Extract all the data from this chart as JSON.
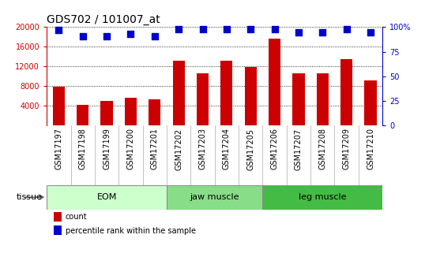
{
  "title": "GDS702 / 101007_at",
  "samples": [
    "GSM17197",
    "GSM17198",
    "GSM17199",
    "GSM17200",
    "GSM17201",
    "GSM17202",
    "GSM17203",
    "GSM17204",
    "GSM17205",
    "GSM17206",
    "GSM17207",
    "GSM17208",
    "GSM17209",
    "GSM17210"
  ],
  "counts": [
    7900,
    4200,
    5000,
    5600,
    5300,
    13200,
    10500,
    13200,
    11800,
    17700,
    10500,
    10500,
    13400,
    9200
  ],
  "percentiles": [
    97,
    91,
    91,
    93,
    91,
    98,
    98,
    98,
    98,
    98,
    95,
    95,
    98,
    95
  ],
  "ylim_left": [
    0,
    20000
  ],
  "ylim_right": [
    0,
    100
  ],
  "yticks_left": [
    4000,
    8000,
    12000,
    16000,
    20000
  ],
  "yticks_right": [
    0,
    25,
    50,
    75,
    100
  ],
  "bar_color": "#cc0000",
  "dot_color": "#0000cc",
  "groups": [
    {
      "label": "EOM",
      "start": 0,
      "end": 5,
      "color": "#ccffcc"
    },
    {
      "label": "jaw muscle",
      "start": 5,
      "end": 9,
      "color": "#88dd88"
    },
    {
      "label": "leg muscle",
      "start": 9,
      "end": 14,
      "color": "#44bb44"
    }
  ],
  "tissue_label": "tissue",
  "legend_count_label": "count",
  "legend_pct_label": "percentile rank within the sample",
  "tick_bg_color": "#cccccc",
  "title_fontsize": 10,
  "axis_fontsize": 8,
  "tick_fontsize": 7,
  "dot_size": 40
}
